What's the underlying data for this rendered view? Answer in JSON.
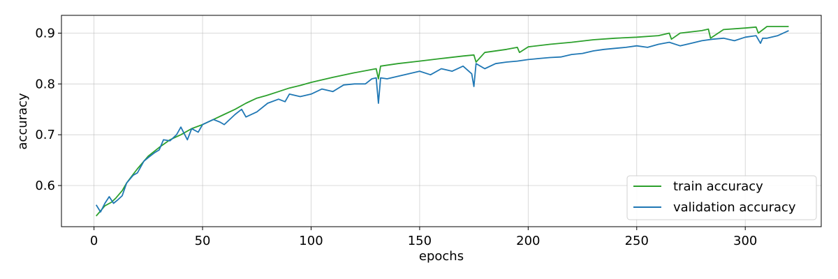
{
  "chart_data": {
    "type": "line",
    "xlabel": "epochs",
    "ylabel": "accuracy",
    "xlim": [
      -15,
      335
    ],
    "ylim": [
      0.519,
      0.935
    ],
    "xticks": [
      0,
      50,
      100,
      150,
      200,
      250,
      300
    ],
    "yticks": [
      0.6,
      0.7,
      0.8,
      0.9
    ],
    "grid": true,
    "legend_position": "lower-right",
    "series": [
      {
        "name": "train accuracy",
        "color": "#2ca02c",
        "x": [
          1,
          3,
          5,
          8,
          10,
          13,
          15,
          18,
          20,
          25,
          30,
          35,
          40,
          45,
          50,
          55,
          60,
          65,
          70,
          75,
          80,
          85,
          90,
          95,
          100,
          110,
          120,
          130,
          131,
          132,
          140,
          150,
          160,
          170,
          175,
          176,
          180,
          190,
          195,
          196,
          200,
          210,
          220,
          230,
          240,
          250,
          260,
          265,
          266,
          270,
          280,
          283,
          284,
          290,
          300,
          305,
          306,
          310,
          315,
          320
        ],
        "values": [
          0.54,
          0.55,
          0.56,
          0.567,
          0.575,
          0.59,
          0.605,
          0.622,
          0.633,
          0.658,
          0.675,
          0.69,
          0.7,
          0.712,
          0.72,
          0.73,
          0.74,
          0.75,
          0.762,
          0.772,
          0.778,
          0.785,
          0.792,
          0.797,
          0.803,
          0.813,
          0.822,
          0.83,
          0.81,
          0.835,
          0.84,
          0.845,
          0.85,
          0.855,
          0.857,
          0.843,
          0.862,
          0.868,
          0.872,
          0.862,
          0.873,
          0.878,
          0.882,
          0.887,
          0.89,
          0.892,
          0.895,
          0.9,
          0.888,
          0.9,
          0.905,
          0.908,
          0.89,
          0.907,
          0.91,
          0.912,
          0.9,
          0.913,
          0.913,
          0.913
        ]
      },
      {
        "name": "validation accuracy",
        "color": "#1f77b4",
        "x": [
          1,
          3,
          5,
          7,
          9,
          11,
          13,
          15,
          18,
          20,
          23,
          25,
          28,
          30,
          32,
          35,
          38,
          40,
          43,
          45,
          48,
          50,
          55,
          58,
          60,
          65,
          68,
          70,
          75,
          80,
          85,
          88,
          90,
          95,
          100,
          105,
          110,
          115,
          120,
          125,
          128,
          130,
          131,
          132,
          135,
          140,
          145,
          150,
          155,
          160,
          165,
          170,
          174,
          175,
          176,
          180,
          185,
          190,
          195,
          200,
          205,
          210,
          215,
          220,
          225,
          230,
          235,
          240,
          245,
          250,
          255,
          260,
          265,
          270,
          275,
          280,
          285,
          290,
          295,
          300,
          305,
          307,
          308,
          310,
          315,
          320
        ],
        "values": [
          0.562,
          0.548,
          0.565,
          0.578,
          0.565,
          0.572,
          0.58,
          0.605,
          0.62,
          0.625,
          0.648,
          0.655,
          0.665,
          0.67,
          0.69,
          0.688,
          0.7,
          0.715,
          0.69,
          0.712,
          0.705,
          0.72,
          0.73,
          0.725,
          0.72,
          0.74,
          0.75,
          0.735,
          0.745,
          0.762,
          0.77,
          0.765,
          0.78,
          0.775,
          0.78,
          0.79,
          0.785,
          0.798,
          0.8,
          0.8,
          0.81,
          0.812,
          0.762,
          0.812,
          0.81,
          0.815,
          0.82,
          0.825,
          0.818,
          0.83,
          0.825,
          0.835,
          0.82,
          0.795,
          0.84,
          0.83,
          0.84,
          0.843,
          0.845,
          0.848,
          0.85,
          0.852,
          0.853,
          0.858,
          0.86,
          0.865,
          0.868,
          0.87,
          0.872,
          0.875,
          0.872,
          0.878,
          0.882,
          0.875,
          0.88,
          0.885,
          0.888,
          0.89,
          0.885,
          0.892,
          0.895,
          0.88,
          0.89,
          0.89,
          0.895,
          0.905
        ]
      }
    ]
  }
}
